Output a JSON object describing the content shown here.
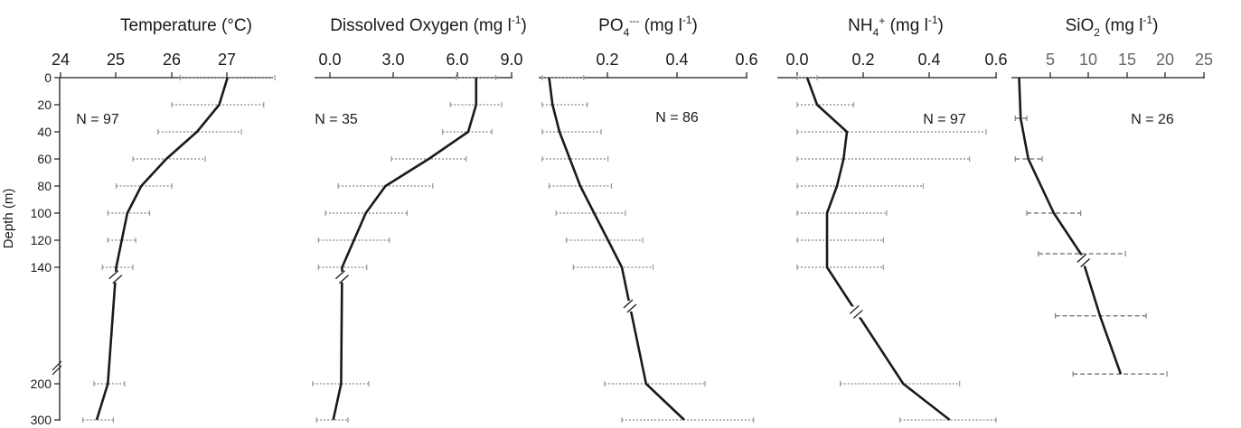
{
  "figure": {
    "ylabel": "Depth (m)",
    "depth_ticks": [
      "0",
      "20",
      "40",
      "60",
      "80",
      "100",
      "120",
      "140",
      "200",
      "300"
    ]
  },
  "chart_data": [
    {
      "type": "line",
      "title": "Temperature (°C)",
      "xticks": [
        "24",
        "25",
        "26",
        "27"
      ],
      "xlim": [
        24,
        27.8
      ],
      "n_label": "N = 97",
      "depth": [
        0,
        20,
        40,
        60,
        80,
        100,
        120,
        140,
        200,
        300
      ],
      "mean": [
        27.0,
        26.85,
        26.45,
        25.9,
        25.45,
        25.2,
        25.1,
        25.0,
        24.85,
        24.65
      ],
      "err_low": [
        26.15,
        26.0,
        25.75,
        25.3,
        25.0,
        24.85,
        24.85,
        24.75,
        24.6,
        24.4
      ],
      "err_high": [
        27.85,
        27.65,
        27.25,
        26.6,
        26.0,
        25.6,
        25.35,
        25.3,
        25.15,
        24.95
      ]
    },
    {
      "type": "line",
      "title": "Dissolved Oxygen (mg l⁻¹)",
      "xticks": [
        "0.0",
        "3.0",
        "6.0",
        "9.0"
      ],
      "xlim": [
        -1.0,
        9.0
      ],
      "n_label": "N = 35",
      "depth": [
        0,
        20,
        40,
        60,
        80,
        100,
        120,
        140,
        200,
        300
      ],
      "mean": [
        7.2,
        7.2,
        6.8,
        4.8,
        2.6,
        1.6,
        1.0,
        0.4,
        0.35,
        -0.05
      ],
      "err_low": [
        6.2,
        5.9,
        5.5,
        2.9,
        0.2,
        -0.45,
        -0.8,
        -0.8,
        -1.1,
        -0.9
      ],
      "err_high": [
        8.2,
        8.5,
        8.0,
        6.7,
        5.0,
        3.7,
        2.8,
        1.65,
        1.75,
        0.7
      ]
    },
    {
      "type": "line",
      "title": "PO₄³⁻ (mg l⁻¹)",
      "xticks": [
        "0.2",
        "0.4",
        "0.6"
      ],
      "xlim": [
        0,
        0.6
      ],
      "n_label": "N = 86",
      "depth": [
        0,
        20,
        40,
        60,
        80,
        100,
        120,
        140,
        200,
        300
      ],
      "mean": [
        0.03,
        0.04,
        0.06,
        0.09,
        0.12,
        0.16,
        0.2,
        0.24,
        0.31,
        0.42
      ],
      "err_low": [
        0.01,
        0.01,
        0.01,
        0.01,
        0.03,
        0.05,
        0.08,
        0.1,
        0.19,
        0.24
      ],
      "err_high": [
        0.13,
        0.14,
        0.18,
        0.2,
        0.21,
        0.25,
        0.3,
        0.33,
        0.48,
        0.62
      ]
    },
    {
      "type": "line",
      "title": "NH₄⁺ (mg l⁻¹)",
      "xticks": [
        "0.0",
        "0.2",
        "0.4",
        "0.6"
      ],
      "xlim": [
        -0.06,
        0.6
      ],
      "n_label": "N = 97",
      "depth": [
        0,
        20,
        40,
        60,
        80,
        100,
        120,
        140,
        200,
        300
      ],
      "mean": [
        0.03,
        0.06,
        0.15,
        0.14,
        0.12,
        0.09,
        0.09,
        0.09,
        0.32,
        0.46
      ],
      "err_low": [
        0.0,
        0.0,
        0.0,
        0.0,
        0.0,
        0.0,
        0.0,
        0.0,
        0.13,
        0.31
      ],
      "err_high": [
        0.06,
        0.17,
        0.57,
        0.52,
        0.38,
        0.27,
        0.26,
        0.26,
        0.49,
        0.6
      ]
    },
    {
      "type": "line",
      "title": "SiO₂ (mg l⁻¹)",
      "xticks": [
        "5",
        "10",
        "15",
        "20",
        "25"
      ],
      "xlim": [
        0,
        25
      ],
      "n_label": "N = 26",
      "depth": [
        0,
        30,
        60,
        100,
        130,
        165,
        195
      ],
      "mean": [
        1.0,
        1.2,
        2.2,
        5.5,
        9.0,
        11.5,
        14.2
      ],
      "err_low": [
        null,
        0.5,
        0.5,
        2.0,
        3.5,
        5.7,
        8.0
      ],
      "err_high": [
        null,
        2.0,
        4.0,
        9.0,
        14.8,
        17.5,
        20.2
      ]
    }
  ]
}
